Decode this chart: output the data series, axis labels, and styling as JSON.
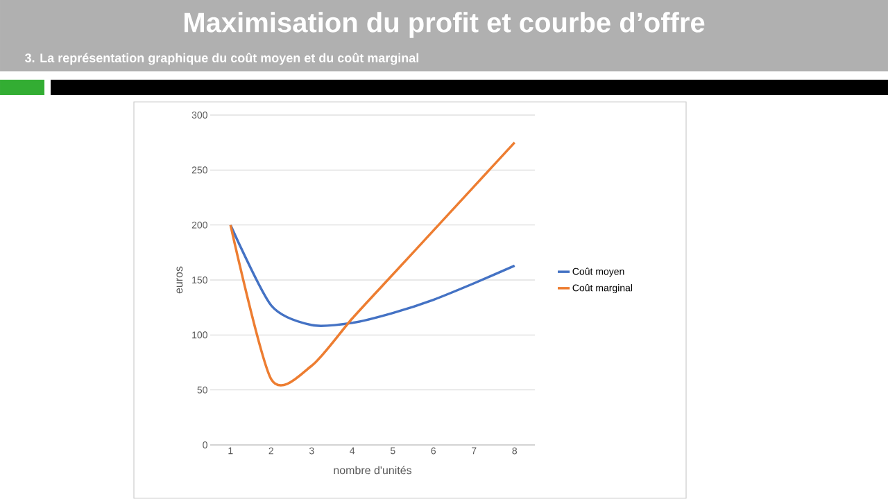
{
  "chart_data": {
    "type": "line",
    "title": "Maximisation du profit et courbe d’offre",
    "subtitle": "3. La représentation graphique du coût moyen et du coût marginal",
    "xlabel": "nombre d'unités",
    "ylabel": "euros",
    "categories": [
      "1",
      "2",
      "3",
      "4",
      "5",
      "6",
      "7",
      "8"
    ],
    "series": [
      {
        "name": "Coût moyen",
        "color": "#4472c4",
        "values": [
          200,
          127,
          109,
          111,
          120,
          132,
          147,
          163
        ]
      },
      {
        "name": "Coût marginal",
        "color": "#ed7d31",
        "values": [
          200,
          60,
          72,
          115,
          155,
          195,
          235,
          275
        ]
      }
    ],
    "ylim": [
      0,
      300
    ],
    "yticks": [
      0,
      50,
      100,
      150,
      200,
      250,
      300
    ],
    "grid": "y",
    "legend": "right"
  }
}
